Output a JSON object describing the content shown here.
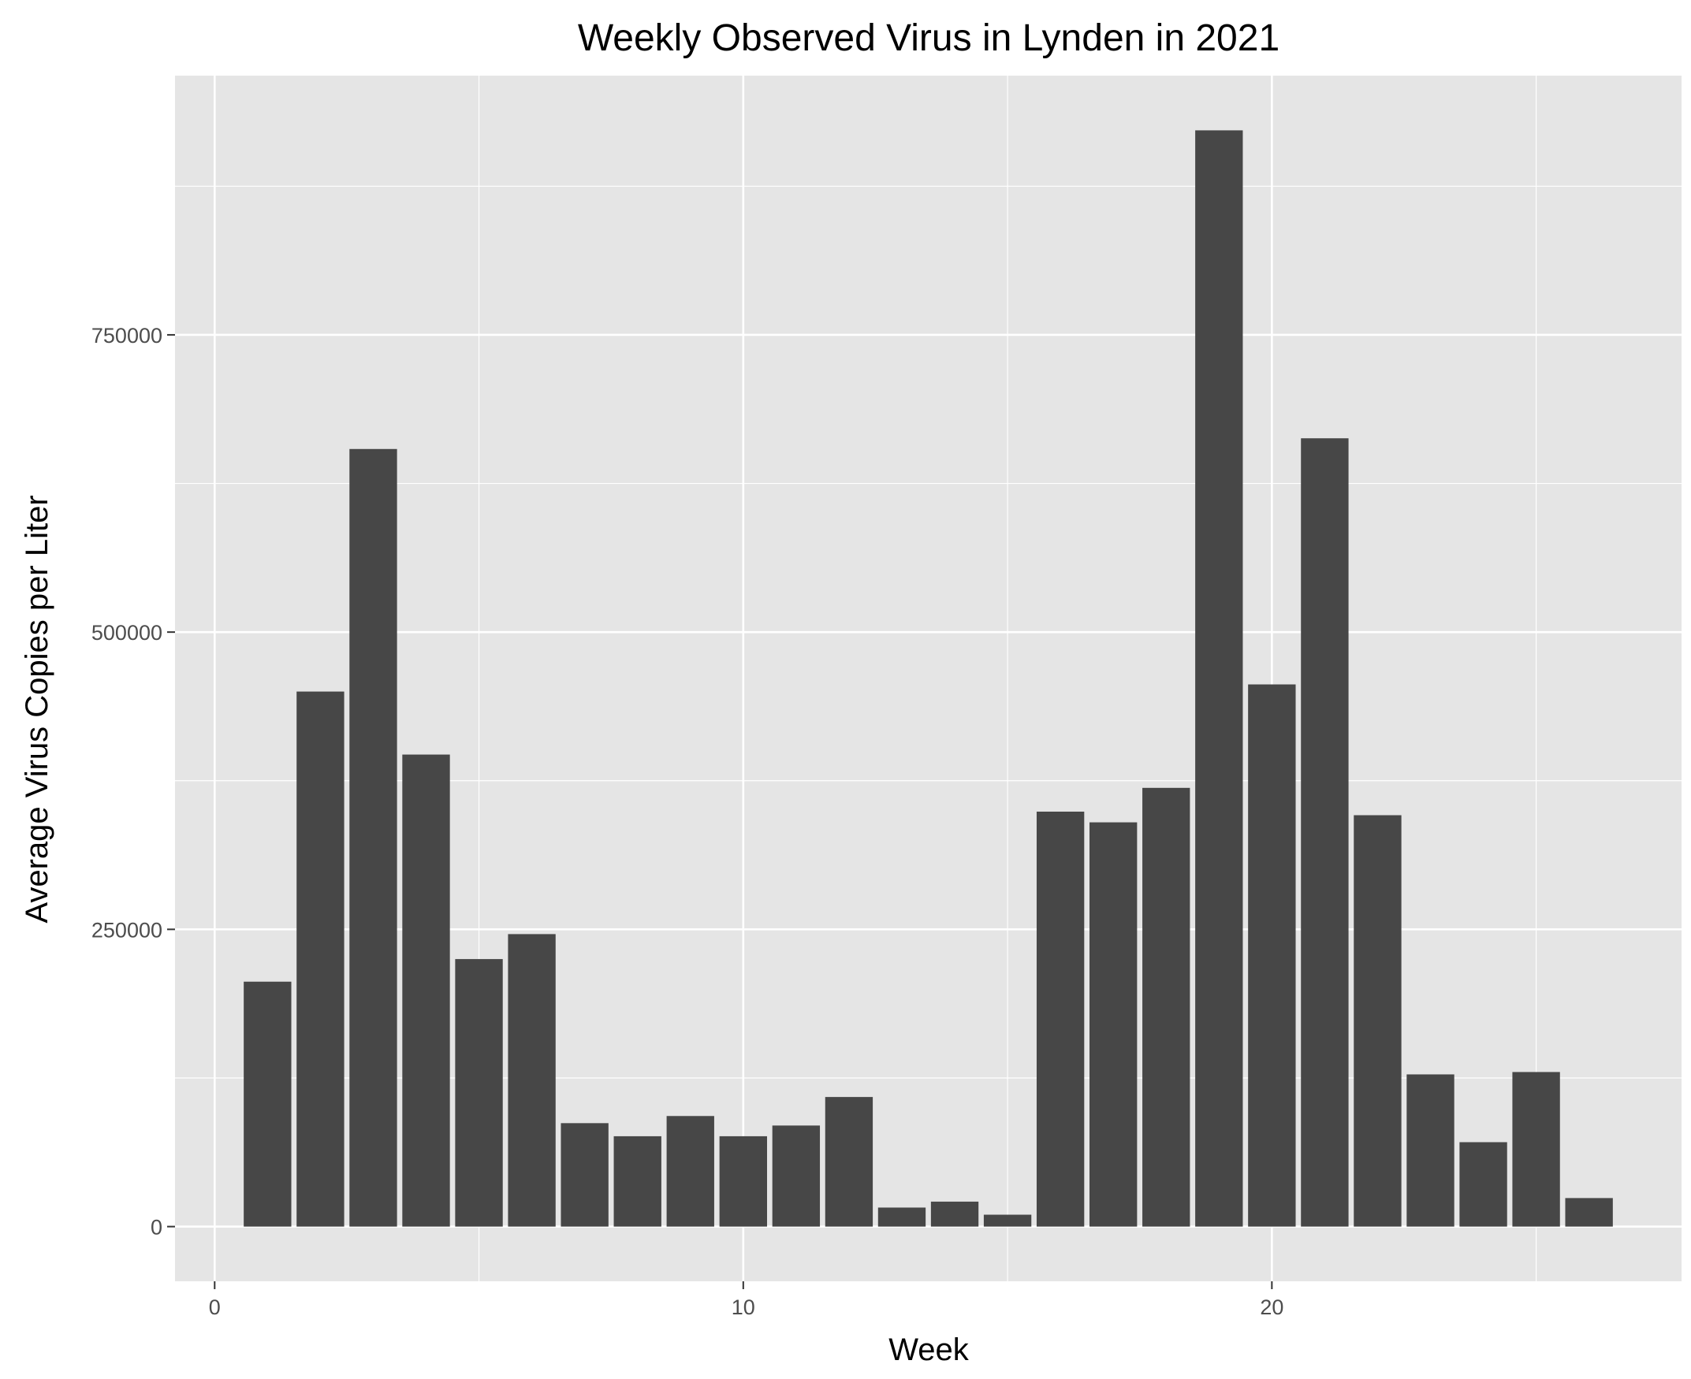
{
  "chart_data": {
    "type": "bar",
    "title": "Weekly Observed Virus in Lynden in 2021",
    "xlabel": "Week",
    "ylabel": "Average Virus Copies per Liter",
    "x": [
      1,
      2,
      3,
      4,
      5,
      6,
      7,
      8,
      9,
      10,
      11,
      12,
      13,
      14,
      15,
      16,
      17,
      18,
      19,
      20,
      21,
      22,
      23,
      24,
      25,
      26
    ],
    "values": [
      206000,
      450000,
      654000,
      397000,
      225000,
      246000,
      87000,
      76000,
      93000,
      76000,
      85000,
      109000,
      16000,
      21000,
      10000,
      349000,
      340000,
      369000,
      922000,
      456000,
      663000,
      346000,
      128000,
      71000,
      130000,
      24000
    ],
    "xlim": [
      -0.75,
      27.75
    ],
    "ylim": [
      -46000,
      968000
    ],
    "x_ticks": [
      0,
      10,
      20
    ],
    "x_tick_labels": [
      "0",
      "10",
      "20"
    ],
    "y_ticks": [
      0,
      250000,
      500000,
      750000
    ],
    "y_tick_labels": [
      "0",
      "250000",
      "500000",
      "750000"
    ],
    "grid": true,
    "legend": "none",
    "colors": {
      "bar": "#474747",
      "panel_background": "#e5e5e5",
      "grid": "#ffffff",
      "tick_text": "#4d4d4d",
      "tick_mark": "#333333"
    }
  }
}
